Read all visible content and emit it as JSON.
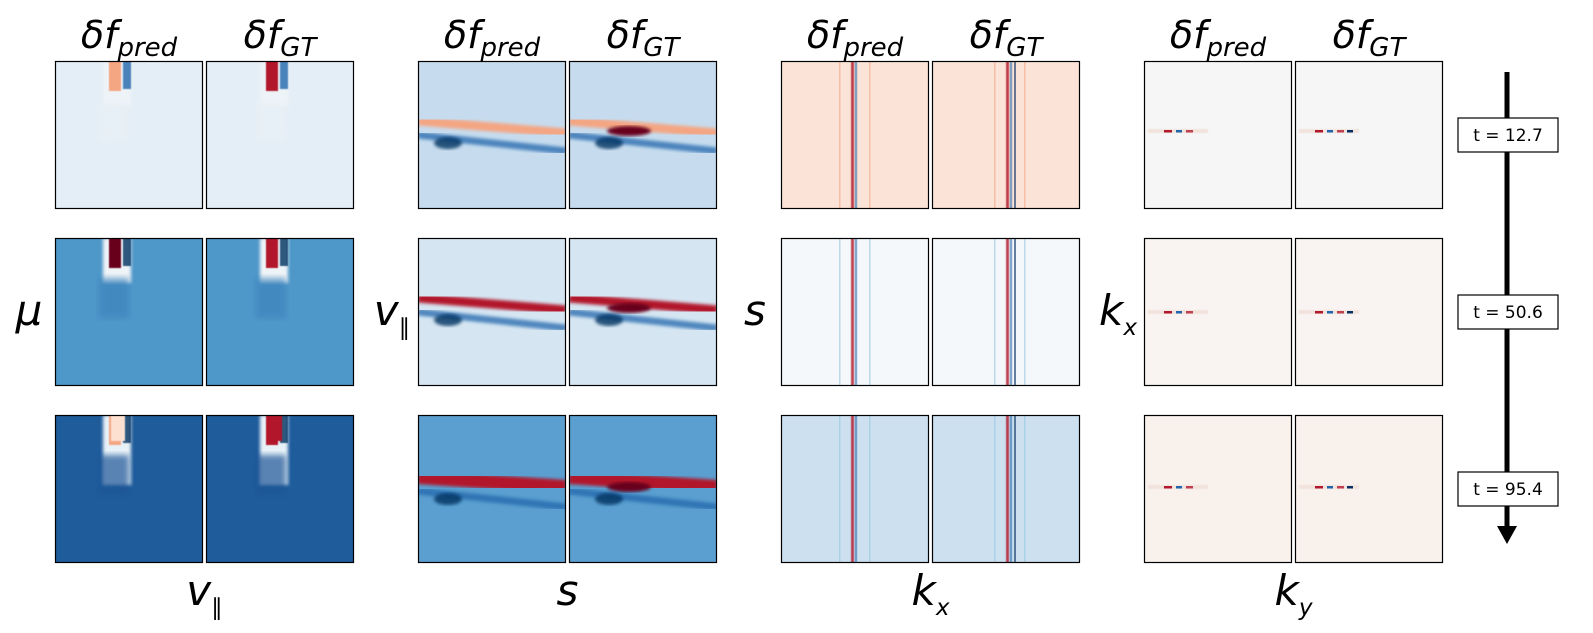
{
  "chart_data": {
    "type": "heatmap",
    "colormap": "RdBu_r",
    "column_titles": {
      "pred": {
        "main": "δf",
        "sub": "pred"
      },
      "gt": {
        "main": "δf",
        "sub": "GT"
      }
    },
    "groups": [
      {
        "id": "mu-vpar",
        "xlabel": {
          "main": "v",
          "sub": "∥"
        },
        "ylabel": {
          "main": "μ",
          "sub": ""
        }
      },
      {
        "id": "s-vpar",
        "xlabel": {
          "main": "s",
          "sub": ""
        },
        "ylabel": {
          "main": "v",
          "sub": "∥"
        }
      },
      {
        "id": "kx-s",
        "xlabel": {
          "main": "k",
          "sub": "x"
        },
        "ylabel": {
          "main": "s",
          "sub": ""
        }
      },
      {
        "id": "ky-kx",
        "xlabel": {
          "main": "k",
          "sub": "y"
        },
        "ylabel": {
          "main": "k",
          "sub": "x"
        }
      }
    ],
    "timesteps": [
      {
        "label": "t = 12.7",
        "t": 12.7
      },
      {
        "label": "t = 50.6",
        "t": 50.6
      },
      {
        "label": "t = 95.4",
        "t": 95.4
      }
    ],
    "time_arrow": "down"
  }
}
